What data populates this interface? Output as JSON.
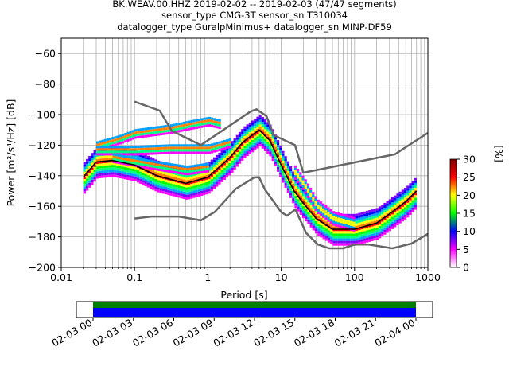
{
  "title_lines": [
    "BK.WEAV.00.HHZ   2019-02-02 -- 2019-02-03  (47/47 segments)",
    "sensor_type CMG-3T sensor_sn T310034",
    "datalogger_type GuralpMinimus+ datalogger_sn MINP-DF59"
  ],
  "chart_data": [
    {
      "type": "heatmap",
      "title": "BK.WEAV.00.HHZ   2019-02-02 -- 2019-02-03  (47/47 segments)",
      "xlabel": "Period [s]",
      "ylabel": "Power [m²/s⁴/Hz] [dB]",
      "xscale": "log",
      "xlim": [
        0.01,
        1000
      ],
      "ylim": [
        -200,
        -50
      ],
      "xticks": [
        {
          "v": 0.01,
          "label": "0.01"
        },
        {
          "v": 0.1,
          "label": "0.1"
        },
        {
          "v": 1,
          "label": "1"
        },
        {
          "v": 10,
          "label": "10"
        },
        {
          "v": 100,
          "label": "100"
        },
        {
          "v": 1000,
          "label": "1000"
        }
      ],
      "yticks": [
        {
          "v": -60,
          "label": "−60"
        },
        {
          "v": -80,
          "label": "−80"
        },
        {
          "v": -100,
          "label": "−100"
        },
        {
          "v": -120,
          "label": "−120"
        },
        {
          "v": -140,
          "label": "−140"
        },
        {
          "v": -160,
          "label": "−160"
        },
        {
          "v": -180,
          "label": "−180"
        },
        {
          "v": -200,
          "label": "−200"
        }
      ],
      "grid": true,
      "colorbar": {
        "label": "[%]",
        "range": [
          0,
          30
        ],
        "ticks": [
          {
            "v": 0,
            "label": "0"
          },
          {
            "v": 5,
            "label": "5"
          },
          {
            "v": 10,
            "label": "10"
          },
          {
            "v": 15,
            "label": "15"
          },
          {
            "v": 20,
            "label": "20"
          },
          {
            "v": 25,
            "label": "25"
          },
          {
            "v": 30,
            "label": "30"
          }
        ],
        "colors": [
          "#ffffff",
          "#ff00ff",
          "#0000ff",
          "#00ff00",
          "#ffff00",
          "#ff0000",
          "#800000"
        ]
      },
      "mode_curve": [
        [
          0.02,
          -141
        ],
        [
          0.03,
          -131
        ],
        [
          0.05,
          -130
        ],
        [
          0.1,
          -133
        ],
        [
          0.2,
          -140
        ],
        [
          0.5,
          -145
        ],
        [
          1,
          -141
        ],
        [
          2,
          -128
        ],
        [
          3,
          -118
        ],
        [
          5,
          -110
        ],
        [
          7,
          -117
        ],
        [
          10,
          -133
        ],
        [
          15,
          -150
        ],
        [
          20,
          -158
        ],
        [
          30,
          -168
        ],
        [
          50,
          -175
        ],
        [
          100,
          -175
        ],
        [
          200,
          -171
        ],
        [
          300,
          -165
        ],
        [
          500,
          -157
        ],
        [
          700,
          -150
        ]
      ],
      "nhnm": [
        [
          0.1,
          -91.5
        ],
        [
          0.22,
          -97.4
        ],
        [
          0.32,
          -110.5
        ],
        [
          0.8,
          -120
        ],
        [
          3.8,
          -98
        ],
        [
          4.6,
          -96.5
        ],
        [
          6.3,
          -101
        ],
        [
          7.9,
          -113.5
        ],
        [
          15.4,
          -120
        ],
        [
          20,
          -138
        ],
        [
          354.8,
          -126
        ],
        [
          1000,
          -112
        ]
      ],
      "nlnm": [
        [
          0.1,
          -168
        ],
        [
          0.17,
          -166.7
        ],
        [
          0.4,
          -166.7
        ],
        [
          0.8,
          -169.2
        ],
        [
          1.24,
          -163.7
        ],
        [
          2.4,
          -148.6
        ],
        [
          4.3,
          -141.1
        ],
        [
          5,
          -141.1
        ],
        [
          6,
          -149
        ],
        [
          10,
          -163.8
        ],
        [
          12,
          -166.2
        ],
        [
          15.6,
          -162.1
        ],
        [
          21.9,
          -177.5
        ],
        [
          31.6,
          -185
        ],
        [
          45,
          -187.5
        ],
        [
          70,
          -187.5
        ],
        [
          101,
          -185
        ],
        [
          154,
          -185
        ],
        [
          328,
          -187.5
        ],
        [
          600,
          -184.4
        ],
        [
          1000,
          -178
        ]
      ],
      "density_bands": [
        {
          "center": [
            [
              0.02,
              -141
            ],
            [
              0.03,
              -131
            ],
            [
              0.05,
              -130
            ],
            [
              0.1,
              -133
            ],
            [
              0.2,
              -140
            ],
            [
              0.5,
              -145
            ],
            [
              1,
              -141
            ],
            [
              2,
              -128
            ],
            [
              3,
              -118
            ],
            [
              5,
              -110
            ],
            [
              7,
              -117
            ],
            [
              10,
              -133
            ],
            [
              15,
              -150
            ],
            [
              20,
              -158
            ],
            [
              30,
              -168
            ],
            [
              50,
              -175
            ],
            [
              100,
              -175
            ],
            [
              200,
              -171
            ],
            [
              300,
              -165
            ],
            [
              500,
              -157
            ],
            [
              700,
              -150
            ]
          ],
          "spread_db": 10
        },
        {
          "center": [
            [
              0.03,
              -120
            ],
            [
              0.06,
              -116
            ],
            [
              0.1,
              -112
            ],
            [
              0.3,
              -109
            ],
            [
              0.6,
              -106
            ],
            [
              1,
              -104
            ],
            [
              1.5,
              -106
            ]
          ],
          "spread_db": 3
        },
        {
          "center": [
            [
              0.03,
              -123
            ],
            [
              0.1,
              -123
            ],
            [
              0.3,
              -122
            ],
            [
              1,
              -122
            ],
            [
              2,
              -118
            ]
          ],
          "spread_db": 3
        },
        {
          "center": [
            [
              0.05,
              -128
            ],
            [
              0.2,
              -133
            ],
            [
              0.5,
              -136
            ],
            [
              1,
              -134
            ]
          ],
          "spread_db": 3
        },
        {
          "center": [
            [
              15,
              -138
            ],
            [
              20,
              -146
            ],
            [
              30,
              -160
            ],
            [
              50,
              -168
            ],
            [
              100,
              -172
            ]
          ],
          "spread_db": 4
        }
      ]
    },
    {
      "type": "timeline",
      "tick_labels": [
        "02-03 00",
        "02-03 03",
        "02-03 06",
        "02-03 09",
        "02-03 12",
        "02-03 15",
        "02-03 18",
        "02-03 21",
        "02-04 00"
      ],
      "bands": [
        {
          "color": "#008000"
        },
        {
          "color": "#0000ff"
        }
      ]
    }
  ]
}
